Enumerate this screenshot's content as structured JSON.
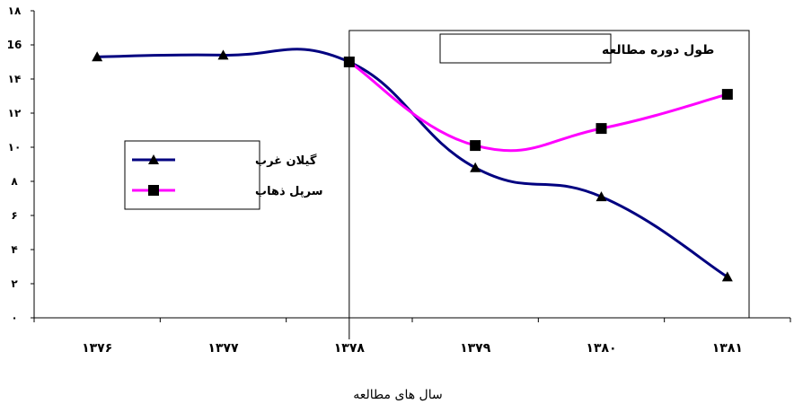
{
  "chart_data": {
    "type": "line",
    "title": "",
    "xlabel": "سال های مطالعه",
    "ylabel": "",
    "categories": [
      "۱۳۷۶",
      "۱۳۷۷",
      "۱۳۷۸",
      "۱۳۷۹",
      "۱۳۸۰",
      "۱۳۸۱"
    ],
    "y_ticks": [
      "۰",
      "۲",
      "۴",
      "۶",
      "۸",
      "۱۰",
      "۱۲",
      "۱۴",
      "16",
      "۱۸"
    ],
    "ylim": [
      0,
      18
    ],
    "grid": false,
    "legend_position": "left",
    "series": [
      {
        "name": "گیلان غرب",
        "values": [
          15.3,
          15.4,
          15.0,
          8.8,
          7.1,
          2.4
        ],
        "color": "#000080",
        "marker": "triangle"
      },
      {
        "name": "سرپل ذهاب",
        "values": [
          null,
          null,
          15.0,
          10.1,
          11.1,
          13.1
        ],
        "color": "#ff00ff",
        "marker": "square"
      }
    ],
    "annotation": {
      "text": "طول دوره مطالعه",
      "from_category": "۱۳۷۸"
    }
  }
}
